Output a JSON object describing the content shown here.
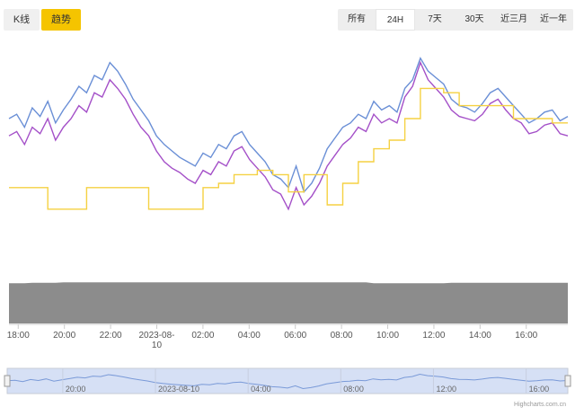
{
  "tabs": {
    "kline": "K线",
    "trend": "趋势"
  },
  "ranges": [
    {
      "label": "所有",
      "active": false
    },
    {
      "label": "24H",
      "active": true
    },
    {
      "label": "7天",
      "active": false
    },
    {
      "label": "30天",
      "active": false
    },
    {
      "label": "近三月",
      "active": false
    },
    {
      "label": "近一年",
      "active": false
    }
  ],
  "credit": "Highcharts.com.cn",
  "colors": {
    "blue": "#6a8fd6",
    "purple": "#a450c8",
    "yellow": "#f5d142",
    "volume": "#8c8c8c",
    "navigator_bg": "#d6e0f5",
    "navigator_line": "#7a9ad8"
  },
  "chart_data": {
    "type": "line",
    "x_tick_labels": [
      "18:00",
      "20:00",
      "22:00",
      "2023-08-10",
      "02:00",
      "04:00",
      "06:00",
      "08:00",
      "10:00",
      "12:00",
      "14:00",
      "16:00"
    ],
    "navigator_tick_labels": [
      "20:00",
      "2023-08-10",
      "04:00",
      "08:00",
      "12:00",
      "16:00"
    ],
    "x_start_hour": 17.6,
    "x_end_hour": 41.8,
    "y_range": [
      0,
      100
    ],
    "series": [
      {
        "values": [
          70,
          72,
          66,
          75,
          71,
          78,
          68,
          74,
          79,
          85,
          82,
          90,
          88,
          96,
          92,
          86,
          79,
          74,
          69,
          62,
          58,
          55,
          52,
          50,
          48,
          54,
          52,
          58,
          56,
          62,
          64,
          58,
          54,
          50,
          44,
          42,
          38,
          48,
          36,
          40,
          47,
          56,
          61,
          66,
          68,
          72,
          70,
          78,
          74,
          76,
          73,
          84,
          88,
          98,
          92,
          89,
          86,
          79,
          76,
          75,
          73,
          77,
          82,
          84,
          80,
          76,
          72,
          68,
          70,
          73,
          74,
          69,
          71
        ]
      },
      {
        "values": [
          62,
          64,
          58,
          66,
          63,
          70,
          60,
          66,
          70,
          76,
          73,
          82,
          80,
          88,
          84,
          79,
          72,
          66,
          62,
          55,
          50,
          47,
          45,
          42,
          40,
          46,
          44,
          50,
          48,
          55,
          57,
          51,
          47,
          43,
          37,
          35,
          28,
          38,
          30,
          34,
          40,
          48,
          53,
          58,
          61,
          66,
          64,
          72,
          68,
          70,
          68,
          80,
          85,
          96,
          88,
          84,
          80,
          74,
          71,
          70,
          69,
          72,
          77,
          79,
          74,
          70,
          68,
          63,
          64,
          67,
          68,
          63,
          62
        ]
      },
      {
        "values": [
          38,
          38,
          38,
          38,
          38,
          28,
          28,
          28,
          28,
          28,
          38,
          38,
          38,
          38,
          38,
          38,
          38,
          38,
          28,
          28,
          28,
          28,
          28,
          28,
          28,
          38,
          38,
          40,
          40,
          44,
          44,
          44,
          46,
          46,
          44,
          44,
          36,
          36,
          44,
          44,
          44,
          30,
          30,
          40,
          40,
          50,
          50,
          56,
          56,
          60,
          60,
          70,
          70,
          84,
          84,
          84,
          82,
          82,
          76,
          76,
          76,
          76,
          76,
          76,
          76,
          70,
          70,
          70,
          70,
          70,
          68,
          68,
          68
        ]
      }
    ],
    "volume_values": [
      86,
      86,
      86,
      87,
      87,
      87,
      87,
      88,
      88,
      88,
      88,
      88,
      88,
      88,
      88,
      88,
      88,
      88,
      88,
      88,
      88,
      88,
      88,
      88,
      88,
      88,
      88,
      88,
      88,
      88,
      88,
      88,
      88,
      88,
      88,
      88,
      88,
      88,
      88,
      88,
      88,
      88,
      88,
      88,
      88,
      88,
      88,
      86,
      86,
      86,
      86,
      86,
      86,
      86,
      86,
      86,
      86,
      87,
      87,
      87,
      87,
      87,
      87,
      87,
      87,
      87,
      87,
      87,
      87,
      87,
      87,
      87,
      87
    ]
  }
}
